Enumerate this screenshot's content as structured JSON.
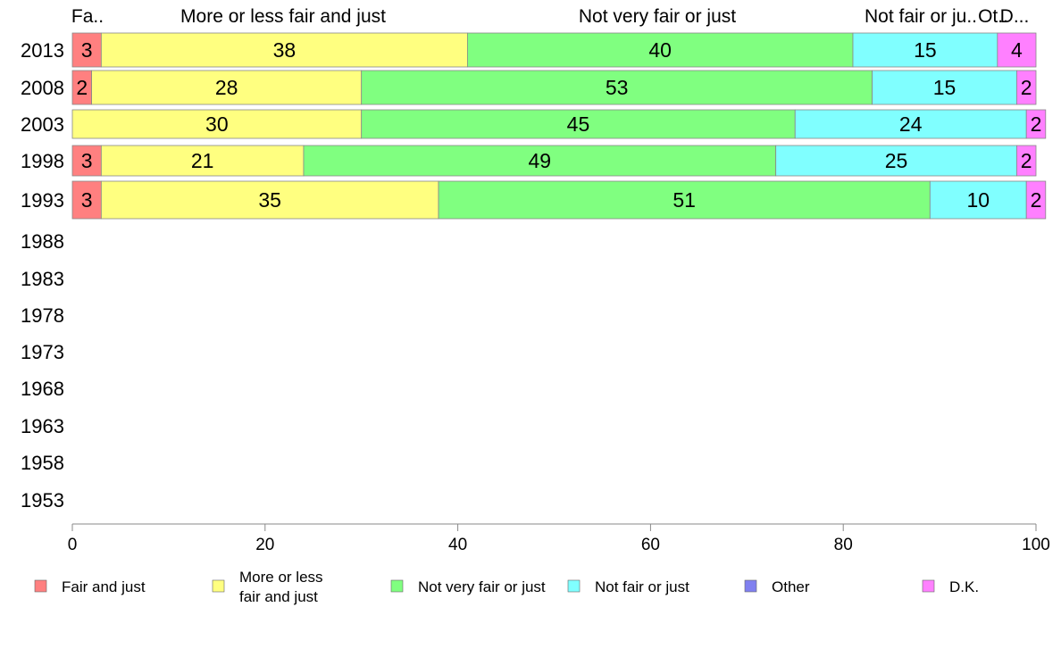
{
  "chart_data": {
    "type": "bar",
    "orientation": "horizontal",
    "stacked": true,
    "title": "",
    "xlabel": "",
    "ylabel": "",
    "xlim": [
      0,
      100
    ],
    "x_ticks": [
      0,
      20,
      40,
      60,
      80,
      100
    ],
    "categories": [
      "2013",
      "2008",
      "2003",
      "1998",
      "1993",
      "1988",
      "1983",
      "1978",
      "1973",
      "1968",
      "1963",
      "1958",
      "1953"
    ],
    "top_labels": [
      "Fa..",
      "More or less fair and just",
      "Not very fair or just",
      "Not fair or ju..",
      "Ot..",
      "D..."
    ],
    "series": [
      {
        "name": "Fair and just",
        "legend_label": [
          "Fair and just"
        ],
        "color": "#FF8080",
        "values": [
          3,
          2,
          0,
          3,
          3,
          null,
          null,
          null,
          null,
          null,
          null,
          null,
          null
        ]
      },
      {
        "name": "More or less fair and just",
        "legend_label": [
          "More or less",
          "fair and just"
        ],
        "color": "#FFFF80",
        "values": [
          38,
          28,
          30,
          21,
          35,
          null,
          null,
          null,
          null,
          null,
          null,
          null,
          null
        ]
      },
      {
        "name": "Not very fair or just",
        "legend_label": [
          "Not very fair or just"
        ],
        "color": "#80FF80",
        "values": [
          40,
          53,
          45,
          49,
          51,
          null,
          null,
          null,
          null,
          null,
          null,
          null,
          null
        ]
      },
      {
        "name": "Not fair or just",
        "legend_label": [
          "Not fair or just"
        ],
        "color": "#80FFFF",
        "values": [
          15,
          15,
          24,
          25,
          10,
          null,
          null,
          null,
          null,
          null,
          null,
          null,
          null
        ]
      },
      {
        "name": "Other",
        "legend_label": [
          "Other"
        ],
        "color": "#8080F0",
        "values": [
          0,
          0,
          0,
          0,
          0,
          null,
          null,
          null,
          null,
          null,
          null,
          null,
          null
        ]
      },
      {
        "name": "D.K.",
        "legend_label": [
          "D.K."
        ],
        "color": "#FF80FF",
        "values": [
          4,
          2,
          2,
          2,
          2,
          null,
          null,
          null,
          null,
          null,
          null,
          null,
          null
        ]
      }
    ],
    "grid": false,
    "legend_position": "bottom"
  }
}
